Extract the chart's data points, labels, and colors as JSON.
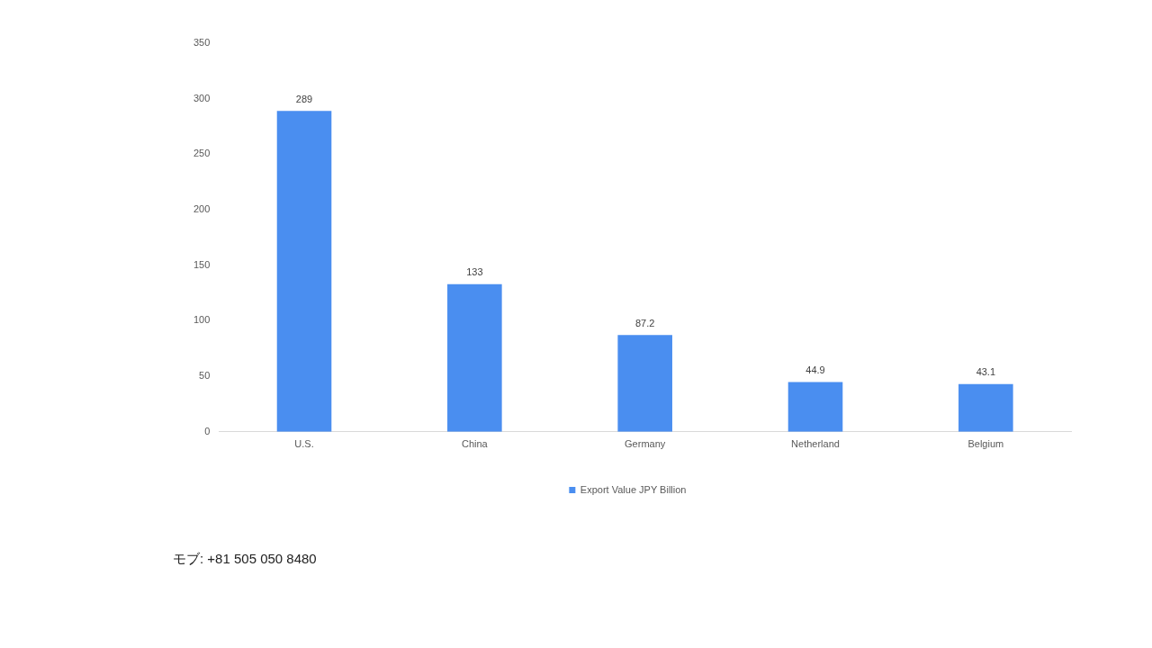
{
  "chart_data": {
    "type": "bar",
    "categories": [
      "U.S.",
      "China",
      "Germany",
      "Netherland",
      "Belgium"
    ],
    "series": [
      {
        "name": "Export Value JPY Billion",
        "color": "#4a8ef0",
        "values": [
          289,
          133,
          87.2,
          44.9,
          43.1
        ]
      }
    ],
    "ylim": [
      0,
      350
    ],
    "yticks": [
      0,
      50,
      100,
      150,
      200,
      250,
      300,
      350
    ],
    "data_labels": true,
    "legend": "bottom",
    "grid": false,
    "annotations": [
      "モブ: +81 505 050 8480"
    ]
  }
}
